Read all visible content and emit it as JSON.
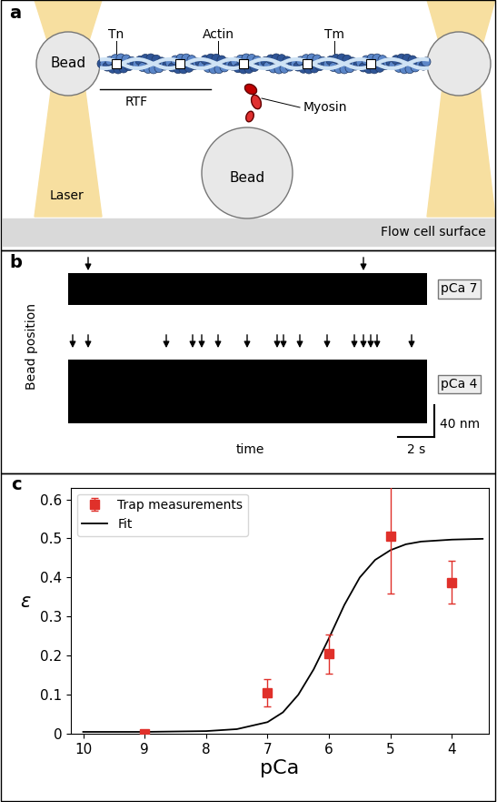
{
  "panel_a": {
    "panel_label": "a",
    "texts": {
      "bead_left": "Bead",
      "bead_bottom": "Bead",
      "troponin": "Tn",
      "actin": "Actin",
      "tropomyosin": "Tm",
      "rtf": "RTF",
      "myosin": "Myosin",
      "laser": "Laser",
      "surface": "Flow cell surface"
    }
  },
  "panel_b": {
    "panel_label": "b",
    "y_label": "Bead position",
    "x_label": "time",
    "traces": [
      {
        "name": "pCa 7",
        "event_times_s": [
          1.1,
          16.25
        ]
      },
      {
        "name": "pCa 4",
        "event_times_s": [
          0.25,
          1.1,
          5.4,
          6.85,
          7.35,
          8.25,
          9.85,
          11.5,
          11.85,
          12.75,
          14.25,
          15.75,
          16.25,
          16.65,
          17.0,
          18.9
        ]
      }
    ],
    "scale_bars": [
      {
        "value": 40,
        "label": "40 nm"
      },
      {
        "value": 2,
        "label": "2 s"
      }
    ]
  },
  "chart_data": {
    "type": "scatter",
    "panel_label": "c",
    "x_label": "pCa",
    "y_label": "ε",
    "xlim": [
      10.2,
      3.4
    ],
    "xticks": [
      10,
      9,
      8,
      7,
      6,
      5,
      4
    ],
    "ylim": [
      0,
      0.63
    ],
    "yticks": [
      0,
      0.1,
      0.2,
      0.3,
      0.4,
      0.5,
      0.6
    ],
    "legend": "upper left",
    "series": [
      {
        "name": "Trap measurements",
        "type": "scatter",
        "color": "#e0302a",
        "marker": "square",
        "x": [
          9,
          7,
          6,
          5,
          4
        ],
        "values": [
          0.0,
          0.105,
          0.205,
          0.505,
          0.388
        ],
        "errors": [
          0.0,
          0.035,
          0.05,
          0.145,
          0.055
        ]
      },
      {
        "name": "Fit",
        "type": "line",
        "color": "#000000",
        "line_style": "solid",
        "x": [
          10,
          9,
          8,
          7.5,
          7,
          6.75,
          6.5,
          6.25,
          6,
          5.75,
          5.5,
          5.25,
          5,
          4.75,
          4.5,
          4,
          3.5
        ],
        "values": [
          0.005,
          0.005,
          0.007,
          0.012,
          0.03,
          0.055,
          0.1,
          0.165,
          0.245,
          0.33,
          0.4,
          0.445,
          0.47,
          0.485,
          0.492,
          0.497,
          0.499
        ]
      }
    ]
  }
}
